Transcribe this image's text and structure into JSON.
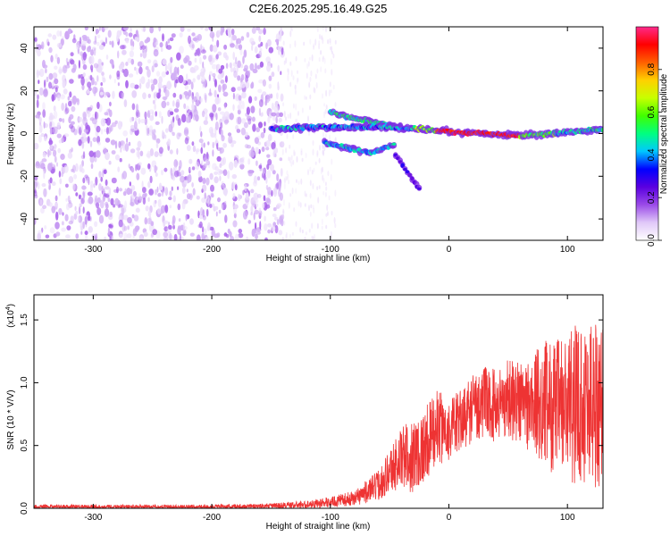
{
  "title": "C2E6.2025.295.16.49.G25",
  "chart_data": [
    {
      "type": "heatmap",
      "title": "C2E6.2025.295.16.49.G25",
      "xlabel": "Height of straight line (km)",
      "ylabel": "Frequency (Hz)",
      "xlim": [
        -350,
        130
      ],
      "ylim": [
        -50,
        50
      ],
      "xticks": [
        -300,
        -200,
        -100,
        0,
        100
      ],
      "yticks": [
        -40,
        -20,
        0,
        20,
        40
      ],
      "colorbar": {
        "label": "Normalized spectral amplitude",
        "range": [
          0.0,
          1.0
        ],
        "ticks": [
          0.0,
          0.2,
          0.4,
          0.6,
          0.8
        ],
        "colors": [
          "#ffffff",
          "#e0c8f8",
          "#9a4ae8",
          "#5a00e0",
          "#0000ff",
          "#00c8ff",
          "#00ff80",
          "#40ff00",
          "#c8ff00",
          "#ffd000",
          "#ff6000",
          "#ff0000",
          "#ff2a8a"
        ]
      },
      "features": {
        "noise_region_km": [
          -350,
          -140
        ],
        "main_track": [
          [
            -150,
            2
          ],
          [
            -120,
            3
          ],
          [
            -80,
            3
          ],
          [
            -50,
            3
          ],
          [
            -20,
            2
          ],
          [
            0,
            1
          ],
          [
            30,
            0
          ],
          [
            60,
            -1
          ],
          [
            90,
            0
          ],
          [
            130,
            2
          ]
        ],
        "upper_branch": [
          [
            -100,
            10
          ],
          [
            -80,
            7
          ],
          [
            -60,
            5
          ],
          [
            -40,
            3
          ]
        ],
        "lower_branch": [
          [
            -105,
            -4
          ],
          [
            -85,
            -7
          ],
          [
            -65,
            -9
          ],
          [
            -45,
            -5
          ]
        ],
        "tail": [
          [
            -45,
            -10
          ],
          [
            -35,
            -18
          ],
          [
            -25,
            -26
          ]
        ]
      }
    },
    {
      "type": "line",
      "xlabel": "Height of straight line (km)",
      "ylabel": "SNR (10 * V/V)",
      "ylabel_exponent": "(x10",
      "ylabel_exponent_power": "4",
      "xlim": [
        -350,
        130
      ],
      "ylim": [
        0.0,
        1.7
      ],
      "xticks": [
        -300,
        -200,
        -100,
        0,
        100
      ],
      "yticks": [
        "0.0",
        "0.5",
        "1.0",
        "1.5"
      ],
      "series": [
        {
          "name": "SNR",
          "color": "#ee3333",
          "envelope_x": [
            -350,
            -200,
            -150,
            -120,
            -100,
            -80,
            -60,
            -50,
            -40,
            -30,
            -20,
            -10,
            0,
            10,
            20,
            30,
            40,
            50,
            60,
            70,
            80,
            90,
            100,
            110,
            120,
            130
          ],
          "envelope_mean": [
            0.01,
            0.01,
            0.02,
            0.03,
            0.05,
            0.08,
            0.18,
            0.3,
            0.4,
            0.42,
            0.5,
            0.65,
            0.62,
            0.7,
            0.8,
            0.85,
            0.82,
            0.88,
            0.85,
            0.82,
            0.85,
            0.8,
            0.8,
            0.85,
            0.85,
            0.85
          ],
          "envelope_spread": [
            0.02,
            0.02,
            0.02,
            0.03,
            0.04,
            0.06,
            0.12,
            0.18,
            0.25,
            0.3,
            0.3,
            0.3,
            0.25,
            0.25,
            0.28,
            0.28,
            0.3,
            0.32,
            0.35,
            0.4,
            0.5,
            0.55,
            0.6,
            0.65,
            0.7,
            0.7
          ]
        }
      ]
    }
  ]
}
